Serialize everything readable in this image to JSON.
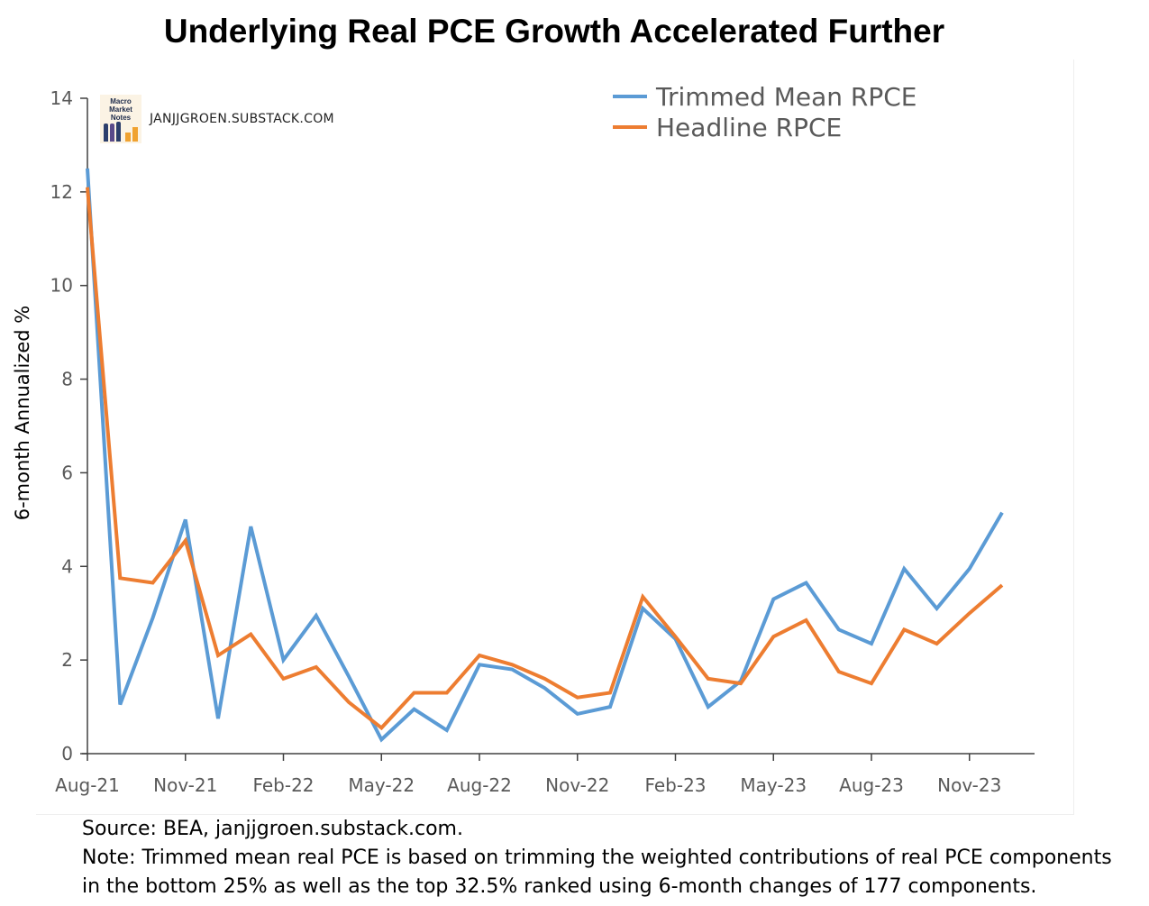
{
  "chart_data": {
    "type": "line",
    "title": "Underlying Real PCE Growth Accelerated Further",
    "ylabel": "6-month Annualized %",
    "xlabel": "",
    "ylim": [
      0,
      14
    ],
    "yticks": [
      0,
      2,
      4,
      6,
      8,
      10,
      12,
      14
    ],
    "xtick_labels": [
      "Aug-21",
      "Nov-21",
      "Feb-22",
      "May-22",
      "Aug-22",
      "Nov-22",
      "Feb-23",
      "May-23",
      "Aug-23",
      "Nov-23"
    ],
    "x": [
      "Aug-21",
      "Sep-21",
      "Oct-21",
      "Nov-21",
      "Dec-21",
      "Jan-22",
      "Feb-22",
      "Mar-22",
      "Apr-22",
      "May-22",
      "Jun-22",
      "Jul-22",
      "Aug-22",
      "Sep-22",
      "Oct-22",
      "Nov-22",
      "Dec-22",
      "Jan-23",
      "Feb-23",
      "Mar-23",
      "Apr-23",
      "May-23",
      "Jun-23",
      "Jul-23",
      "Aug-23",
      "Sep-23",
      "Oct-23",
      "Nov-23",
      "Dec-23"
    ],
    "series": [
      {
        "name": "Trimmed Mean RPCE",
        "color": "#5b9bd5",
        "values": [
          12.5,
          1.05,
          2.9,
          5.0,
          0.75,
          4.85,
          2.0,
          2.95,
          1.65,
          0.3,
          0.95,
          0.5,
          1.9,
          1.8,
          1.4,
          0.85,
          1.0,
          3.1,
          2.45,
          1.0,
          1.55,
          3.3,
          3.65,
          2.65,
          2.35,
          3.95,
          3.1,
          3.95,
          5.15
        ]
      },
      {
        "name": "Headline RPCE",
        "color": "#ed7d31",
        "values": [
          12.1,
          3.75,
          3.65,
          4.55,
          2.1,
          2.55,
          1.6,
          1.85,
          1.1,
          0.55,
          1.3,
          1.3,
          2.1,
          1.9,
          1.6,
          1.2,
          1.3,
          3.35,
          2.5,
          1.6,
          1.5,
          2.5,
          2.85,
          1.75,
          1.5,
          2.65,
          2.35,
          3.0,
          3.6
        ]
      }
    ],
    "legend": "top-right",
    "grid": false
  },
  "watermark": "JANJJGROEN.SUBSTACK.COM",
  "logo_text": "Macro Market Notes",
  "footer": {
    "source": "Source: BEA, janjjgroen.substack.com.",
    "note_line1": "Note: Trimmed mean real PCE is based on trimming the weighted contributions of real PCE components",
    "note_line2": "in the bottom 25% as well as the top 32.5% ranked using 6-month changes of 177 components."
  },
  "colors": {
    "axis": "#404040",
    "tick_label": "#595959"
  }
}
